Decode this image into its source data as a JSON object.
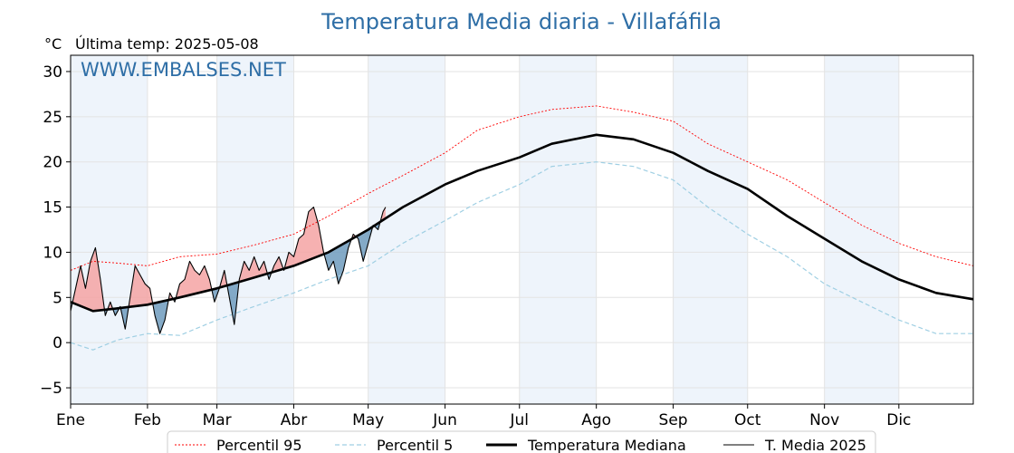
{
  "chart_data": {
    "type": "line",
    "title": "Temperatura Media diaria - Villafáfila",
    "ylabel": "°C",
    "subtitle": "Última temp: 2025-05-08",
    "watermark": "WWW.EMBALSES.NET",
    "ylim": [
      -6.8,
      31.8
    ],
    "yticks": [
      -5,
      0,
      5,
      10,
      15,
      20,
      25,
      30
    ],
    "ytick_labels": [
      "−5",
      "0",
      "5",
      "10",
      "15",
      "20",
      "25",
      "30"
    ],
    "x_day_range": [
      1,
      365
    ],
    "months": [
      "Ene",
      "Feb",
      "Mar",
      "Abr",
      "May",
      "Jun",
      "Jul",
      "Ago",
      "Sep",
      "Oct",
      "Nov",
      "Dic"
    ],
    "month_start_days": [
      1,
      32,
      60,
      91,
      121,
      152,
      182,
      213,
      244,
      274,
      305,
      335
    ],
    "grid": true,
    "legend_position": "bottom",
    "colors": {
      "p95": "#ff0000",
      "p5": "#9fcfe3",
      "median": "#000000",
      "current": "#000000",
      "above_fill": "#f4a3a3",
      "below_fill": "#6f9bbd",
      "band": "#eef4fb",
      "title": "#2e6ea6"
    },
    "series": [
      {
        "name": "Percentil 95",
        "style": "dotted",
        "points": [
          [
            1,
            8.0
          ],
          [
            10,
            9.0
          ],
          [
            20,
            8.8
          ],
          [
            32,
            8.5
          ],
          [
            45,
            9.5
          ],
          [
            60,
            9.8
          ],
          [
            75,
            10.8
          ],
          [
            91,
            12.0
          ],
          [
            105,
            14.0
          ],
          [
            121,
            16.5
          ],
          [
            135,
            18.5
          ],
          [
            152,
            21.0
          ],
          [
            165,
            23.5
          ],
          [
            182,
            25.0
          ],
          [
            195,
            25.8
          ],
          [
            213,
            26.2
          ],
          [
            228,
            25.5
          ],
          [
            244,
            24.5
          ],
          [
            258,
            22.0
          ],
          [
            274,
            20.0
          ],
          [
            290,
            18.0
          ],
          [
            305,
            15.5
          ],
          [
            320,
            13.0
          ],
          [
            335,
            11.0
          ],
          [
            350,
            9.5
          ],
          [
            365,
            8.5
          ]
        ]
      },
      {
        "name": "Percentil 5",
        "style": "dashed",
        "points": [
          [
            1,
            0.0
          ],
          [
            10,
            -0.8
          ],
          [
            20,
            0.3
          ],
          [
            32,
            1.0
          ],
          [
            45,
            0.8
          ],
          [
            60,
            2.5
          ],
          [
            75,
            4.0
          ],
          [
            91,
            5.5
          ],
          [
            105,
            7.0
          ],
          [
            121,
            8.5
          ],
          [
            135,
            11.0
          ],
          [
            152,
            13.5
          ],
          [
            165,
            15.5
          ],
          [
            182,
            17.5
          ],
          [
            195,
            19.5
          ],
          [
            213,
            20.0
          ],
          [
            228,
            19.5
          ],
          [
            244,
            18.0
          ],
          [
            258,
            15.0
          ],
          [
            274,
            12.0
          ],
          [
            290,
            9.5
          ],
          [
            305,
            6.5
          ],
          [
            320,
            4.5
          ],
          [
            335,
            2.5
          ],
          [
            350,
            1.0
          ],
          [
            365,
            1.0
          ]
        ]
      },
      {
        "name": "Temperatura Mediana",
        "style": "solid-thick",
        "points": [
          [
            1,
            4.5
          ],
          [
            10,
            3.5
          ],
          [
            20,
            3.8
          ],
          [
            32,
            4.2
          ],
          [
            45,
            5.0
          ],
          [
            60,
            6.0
          ],
          [
            75,
            7.2
          ],
          [
            91,
            8.5
          ],
          [
            105,
            10.0
          ],
          [
            121,
            12.5
          ],
          [
            135,
            15.0
          ],
          [
            152,
            17.5
          ],
          [
            165,
            19.0
          ],
          [
            182,
            20.5
          ],
          [
            195,
            22.0
          ],
          [
            213,
            23.0
          ],
          [
            228,
            22.5
          ],
          [
            244,
            21.0
          ],
          [
            258,
            19.0
          ],
          [
            274,
            17.0
          ],
          [
            290,
            14.0
          ],
          [
            305,
            11.5
          ],
          [
            320,
            9.0
          ],
          [
            335,
            7.0
          ],
          [
            350,
            5.5
          ],
          [
            365,
            4.8
          ]
        ]
      },
      {
        "name": "T. Media 2025",
        "style": "solid-thin",
        "points": [
          [
            1,
            3.5
          ],
          [
            3,
            6.0
          ],
          [
            5,
            8.5
          ],
          [
            7,
            6.0
          ],
          [
            9,
            9.0
          ],
          [
            11,
            10.5
          ],
          [
            13,
            7.0
          ],
          [
            15,
            3.0
          ],
          [
            17,
            4.5
          ],
          [
            19,
            3.0
          ],
          [
            21,
            4.0
          ],
          [
            23,
            1.5
          ],
          [
            25,
            5.0
          ],
          [
            27,
            8.5
          ],
          [
            29,
            7.5
          ],
          [
            31,
            6.5
          ],
          [
            33,
            6.0
          ],
          [
            35,
            3.0
          ],
          [
            37,
            1.0
          ],
          [
            39,
            2.5
          ],
          [
            41,
            5.5
          ],
          [
            43,
            4.5
          ],
          [
            45,
            6.5
          ],
          [
            47,
            7.0
          ],
          [
            49,
            9.0
          ],
          [
            51,
            8.0
          ],
          [
            53,
            7.5
          ],
          [
            55,
            8.5
          ],
          [
            57,
            7.0
          ],
          [
            59,
            4.5
          ],
          [
            61,
            6.0
          ],
          [
            63,
            8.0
          ],
          [
            65,
            5.0
          ],
          [
            67,
            2.0
          ],
          [
            69,
            7.0
          ],
          [
            71,
            9.0
          ],
          [
            73,
            8.0
          ],
          [
            75,
            9.5
          ],
          [
            77,
            8.0
          ],
          [
            79,
            9.0
          ],
          [
            81,
            7.0
          ],
          [
            83,
            8.5
          ],
          [
            85,
            9.5
          ],
          [
            87,
            8.0
          ],
          [
            89,
            10.0
          ],
          [
            91,
            9.5
          ],
          [
            93,
            11.5
          ],
          [
            95,
            12.0
          ],
          [
            97,
            14.5
          ],
          [
            99,
            15.0
          ],
          [
            101,
            13.0
          ],
          [
            103,
            10.0
          ],
          [
            105,
            8.0
          ],
          [
            107,
            9.0
          ],
          [
            109,
            6.5
          ],
          [
            111,
            8.0
          ],
          [
            113,
            10.5
          ],
          [
            115,
            12.0
          ],
          [
            117,
            11.5
          ],
          [
            119,
            9.0
          ],
          [
            121,
            11.0
          ],
          [
            123,
            13.0
          ],
          [
            125,
            12.5
          ],
          [
            127,
            14.5
          ],
          [
            128,
            15.0
          ]
        ]
      }
    ]
  }
}
